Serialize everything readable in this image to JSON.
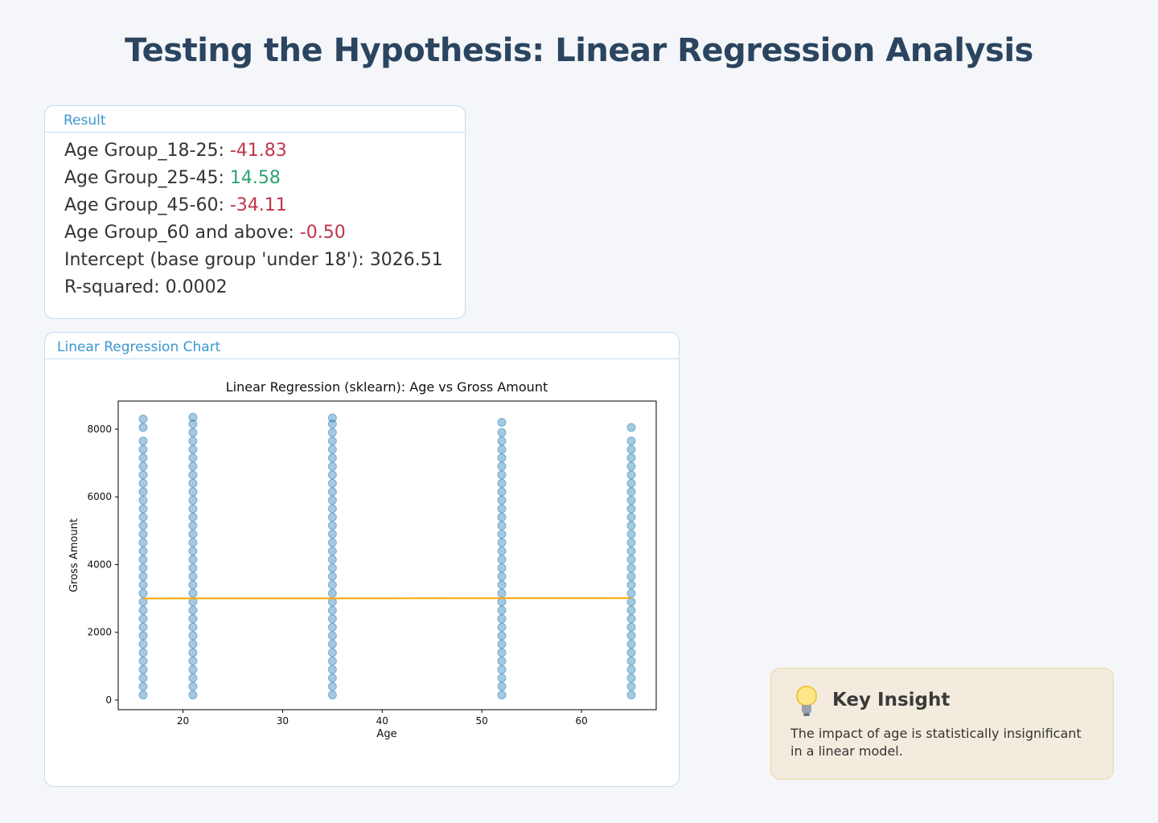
{
  "header": {
    "title": "Testing the Hypothesis: Linear Regression Analysis"
  },
  "result": {
    "label": "Result",
    "lines": [
      {
        "label": "Age Group_18-25:",
        "value": "-41.83",
        "tone": "negative"
      },
      {
        "label": "Age Group_25-45:",
        "value": "14.58",
        "tone": "positive"
      },
      {
        "label": "Age Group_45-60:",
        "value": "-34.11",
        "tone": "negative"
      },
      {
        "label": "Age Group_60 and above:",
        "value": "-0.50",
        "tone": "negative"
      },
      {
        "label": "Intercept (base group 'under 18'):",
        "value": "3026.51",
        "tone": "neutral"
      },
      {
        "label": "R-squared:",
        "value": "0.0002",
        "tone": "neutral"
      }
    ]
  },
  "chart_panel": {
    "label": "Linear Regression Chart"
  },
  "chart_data": {
    "type": "scatter",
    "title": "Linear Regression (sklearn): Age vs Gross Amount",
    "x_label": "Age",
    "y_label": "Gross Amount",
    "color": "#1f77b4",
    "line_color": "#ffa500",
    "xlim": [
      13.5,
      67.5
    ],
    "ylim": [
      -285,
      8830
    ],
    "xticks": [
      20,
      30,
      40,
      50,
      60
    ],
    "yticks": [
      0,
      2000,
      4000,
      6000,
      8000
    ],
    "groups": [
      {
        "x": 16,
        "y": [
          150,
          400,
          650,
          900,
          1150,
          1400,
          1650,
          1900,
          2150,
          2400,
          2650,
          2900,
          3150,
          3400,
          3650,
          3900,
          4150,
          4400,
          4650,
          4900,
          5150,
          5400,
          5650,
          5900,
          6150,
          6400,
          6650,
          6900,
          7150,
          7400,
          7650,
          8050,
          8300
        ]
      },
      {
        "x": 21,
        "y": [
          150,
          400,
          650,
          900,
          1150,
          1400,
          1650,
          1900,
          2150,
          2400,
          2650,
          2900,
          3150,
          3400,
          3650,
          3900,
          4150,
          4400,
          4650,
          4900,
          5150,
          5400,
          5650,
          5900,
          6150,
          6400,
          6650,
          6900,
          7150,
          7400,
          7650,
          7900,
          8150,
          8350
        ]
      },
      {
        "x": 35,
        "y": [
          150,
          400,
          650,
          900,
          1150,
          1400,
          1650,
          1900,
          2150,
          2400,
          2650,
          2900,
          3150,
          3400,
          3650,
          3900,
          4150,
          4400,
          4650,
          4900,
          5150,
          5400,
          5650,
          5900,
          6150,
          6400,
          6650,
          6900,
          7150,
          7400,
          7650,
          7900,
          8150,
          8330
        ]
      },
      {
        "x": 52,
        "y": [
          150,
          400,
          650,
          900,
          1150,
          1400,
          1650,
          1900,
          2150,
          2400,
          2650,
          2900,
          3150,
          3400,
          3650,
          3900,
          4150,
          4400,
          4650,
          4900,
          5150,
          5400,
          5650,
          5900,
          6150,
          6400,
          6650,
          6900,
          7150,
          7400,
          7650,
          7900,
          8200
        ]
      },
      {
        "x": 65,
        "y": [
          150,
          400,
          650,
          900,
          1150,
          1400,
          1650,
          1900,
          2150,
          2400,
          2650,
          2900,
          3150,
          3400,
          3650,
          3900,
          4150,
          4400,
          4650,
          4900,
          5150,
          5400,
          5650,
          5900,
          6150,
          6400,
          6650,
          6900,
          7150,
          7400,
          7650,
          8050
        ]
      }
    ],
    "fit": {
      "x": [
        16,
        65
      ],
      "y": [
        3000,
        3010
      ]
    }
  },
  "insight": {
    "title": "Key Insight",
    "text": "The impact of age is statistically insignificant in a linear model."
  }
}
